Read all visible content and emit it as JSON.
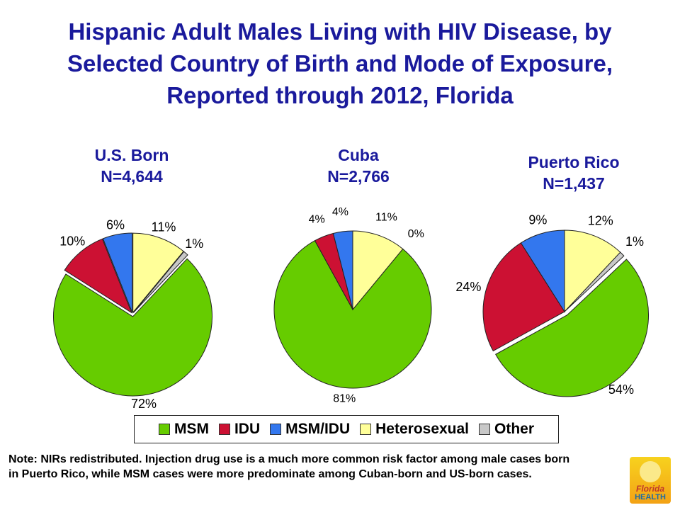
{
  "title": {
    "line1": "Hispanic Adult Males Living with HIV Disease, by",
    "line2": "Selected Country of Birth and Mode of Exposure,",
    "line3": "Reported through 2012, Florida"
  },
  "colors": {
    "MSM": "#66cc00",
    "IDU": "#cc1133",
    "MSM/IDU": "#3377ee",
    "Heterosexual": "#ffff99",
    "Other": "#c8c8c8",
    "title": "#1a1a9c"
  },
  "chart_data": [
    {
      "type": "pie",
      "title": "U.S. Born",
      "subtitle": "N=4,644",
      "categories": [
        "MSM",
        "IDU",
        "MSM/IDU",
        "Heterosexual",
        "Other"
      ],
      "values": [
        72,
        10,
        6,
        11,
        1
      ],
      "labels": [
        "72%",
        "10%",
        "6%",
        "11%",
        "1%"
      ]
    },
    {
      "type": "pie",
      "title": "Cuba",
      "subtitle": "N=2,766",
      "categories": [
        "MSM",
        "IDU",
        "MSM/IDU",
        "Heterosexual",
        "Other"
      ],
      "values": [
        81,
        4,
        4,
        11,
        0
      ],
      "labels": [
        "81%",
        "4%",
        "4%",
        "11%",
        "0%"
      ]
    },
    {
      "type": "pie",
      "title": "Puerto Rico",
      "subtitle": "N=1,437",
      "categories": [
        "MSM",
        "IDU",
        "MSM/IDU",
        "Heterosexual",
        "Other"
      ],
      "values": [
        54,
        24,
        9,
        12,
        1
      ],
      "labels": [
        "54%",
        "24%",
        "9%",
        "12%",
        "1%"
      ]
    }
  ],
  "legend": [
    "MSM",
    "IDU",
    "MSM/IDU",
    "Heterosexual",
    "Other"
  ],
  "note": "Note: NIRs redistributed. Injection drug use is a much more common risk factor among male cases born in Puerto Rico, while MSM cases were more predominate among Cuban-born and US-born cases.",
  "logo": {
    "line1": "Florida",
    "line2": "HEALTH"
  }
}
